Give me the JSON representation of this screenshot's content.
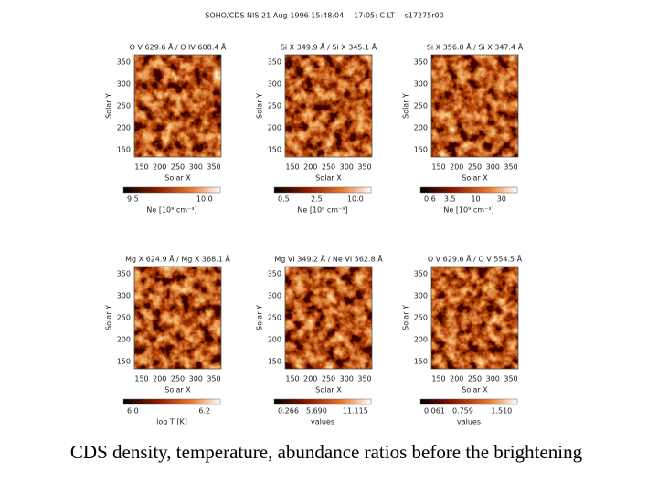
{
  "header": {
    "title": "SOHO/CDS NIS 21-Aug-1996 15:48:04 -- 17:05: C LT -- s17275r00"
  },
  "panels": [
    {
      "title": "O V 629.6 Å / O IV 608.4 Å",
      "y_label": "Solar Y",
      "x_label": "Solar X",
      "y_ticks": [
        "350",
        "300",
        "250",
        "200",
        "150"
      ],
      "x_ticks": [
        "150",
        "200",
        "250",
        "300",
        "350"
      ],
      "colorbar": {
        "labels": [
          "9.5",
          "10.0"
        ],
        "unit": "Ne [10⁹ cm⁻³]"
      }
    },
    {
      "title": "Si X 349.9 Å / Si X 345.1 Å",
      "y_label": "Solar Y",
      "x_label": "Solar X",
      "y_ticks": [
        "350",
        "300",
        "250",
        "200",
        "150"
      ],
      "x_ticks": [
        "150",
        "200",
        "250",
        "300",
        "350"
      ],
      "colorbar": {
        "labels": [
          "0.5",
          "2.5",
          "10.0"
        ],
        "unit": "Ne [10⁹ cm⁻³]"
      }
    },
    {
      "title": "Si X 356.0 Å / Si X 347.4 Å",
      "y_label": "Solar Y",
      "x_label": "Solar X",
      "y_ticks": [
        "350",
        "300",
        "250",
        "200",
        "150"
      ],
      "x_ticks": [
        "150",
        "200",
        "250",
        "300",
        "350"
      ],
      "colorbar": {
        "labels": [
          "0.6",
          "3.5",
          "10",
          "30"
        ],
        "unit": "Ne [10⁹ cm⁻³]"
      }
    },
    {
      "title": "Mg X 624.9 Å / Mg X 368.1 Å",
      "y_label": "Solar Y",
      "x_label": "Solar X",
      "y_ticks": [
        "350",
        "300",
        "250",
        "200",
        "150"
      ],
      "x_ticks": [
        "150",
        "200",
        "250",
        "300",
        "350"
      ],
      "colorbar": {
        "labels": [
          "6.0",
          "6.2"
        ],
        "unit": "log T [K]"
      }
    },
    {
      "title": "Mg VI 349.2 Å / Ne VI 562.8 Å",
      "y_label": "Solar Y",
      "x_label": "Solar X",
      "y_ticks": [
        "350",
        "300",
        "250",
        "200",
        "150"
      ],
      "x_ticks": [
        "150",
        "200",
        "250",
        "300",
        "350"
      ],
      "colorbar": {
        "labels": [
          "0.266",
          "5.690",
          "11.115"
        ],
        "unit": "values"
      }
    },
    {
      "title": "O V 629.6 Å / O V 554.5 Å",
      "y_label": "Solar Y",
      "x_label": "Solar X",
      "y_ticks": [
        "350",
        "300",
        "250",
        "200",
        "150"
      ],
      "x_ticks": [
        "150",
        "200",
        "250",
        "300",
        "350"
      ],
      "colorbar": {
        "labels": [
          "0.061",
          "0.759",
          "1.510"
        ],
        "unit": "values"
      }
    }
  ],
  "caption": "CDS density, temperature, abundance ratios before the brightening"
}
